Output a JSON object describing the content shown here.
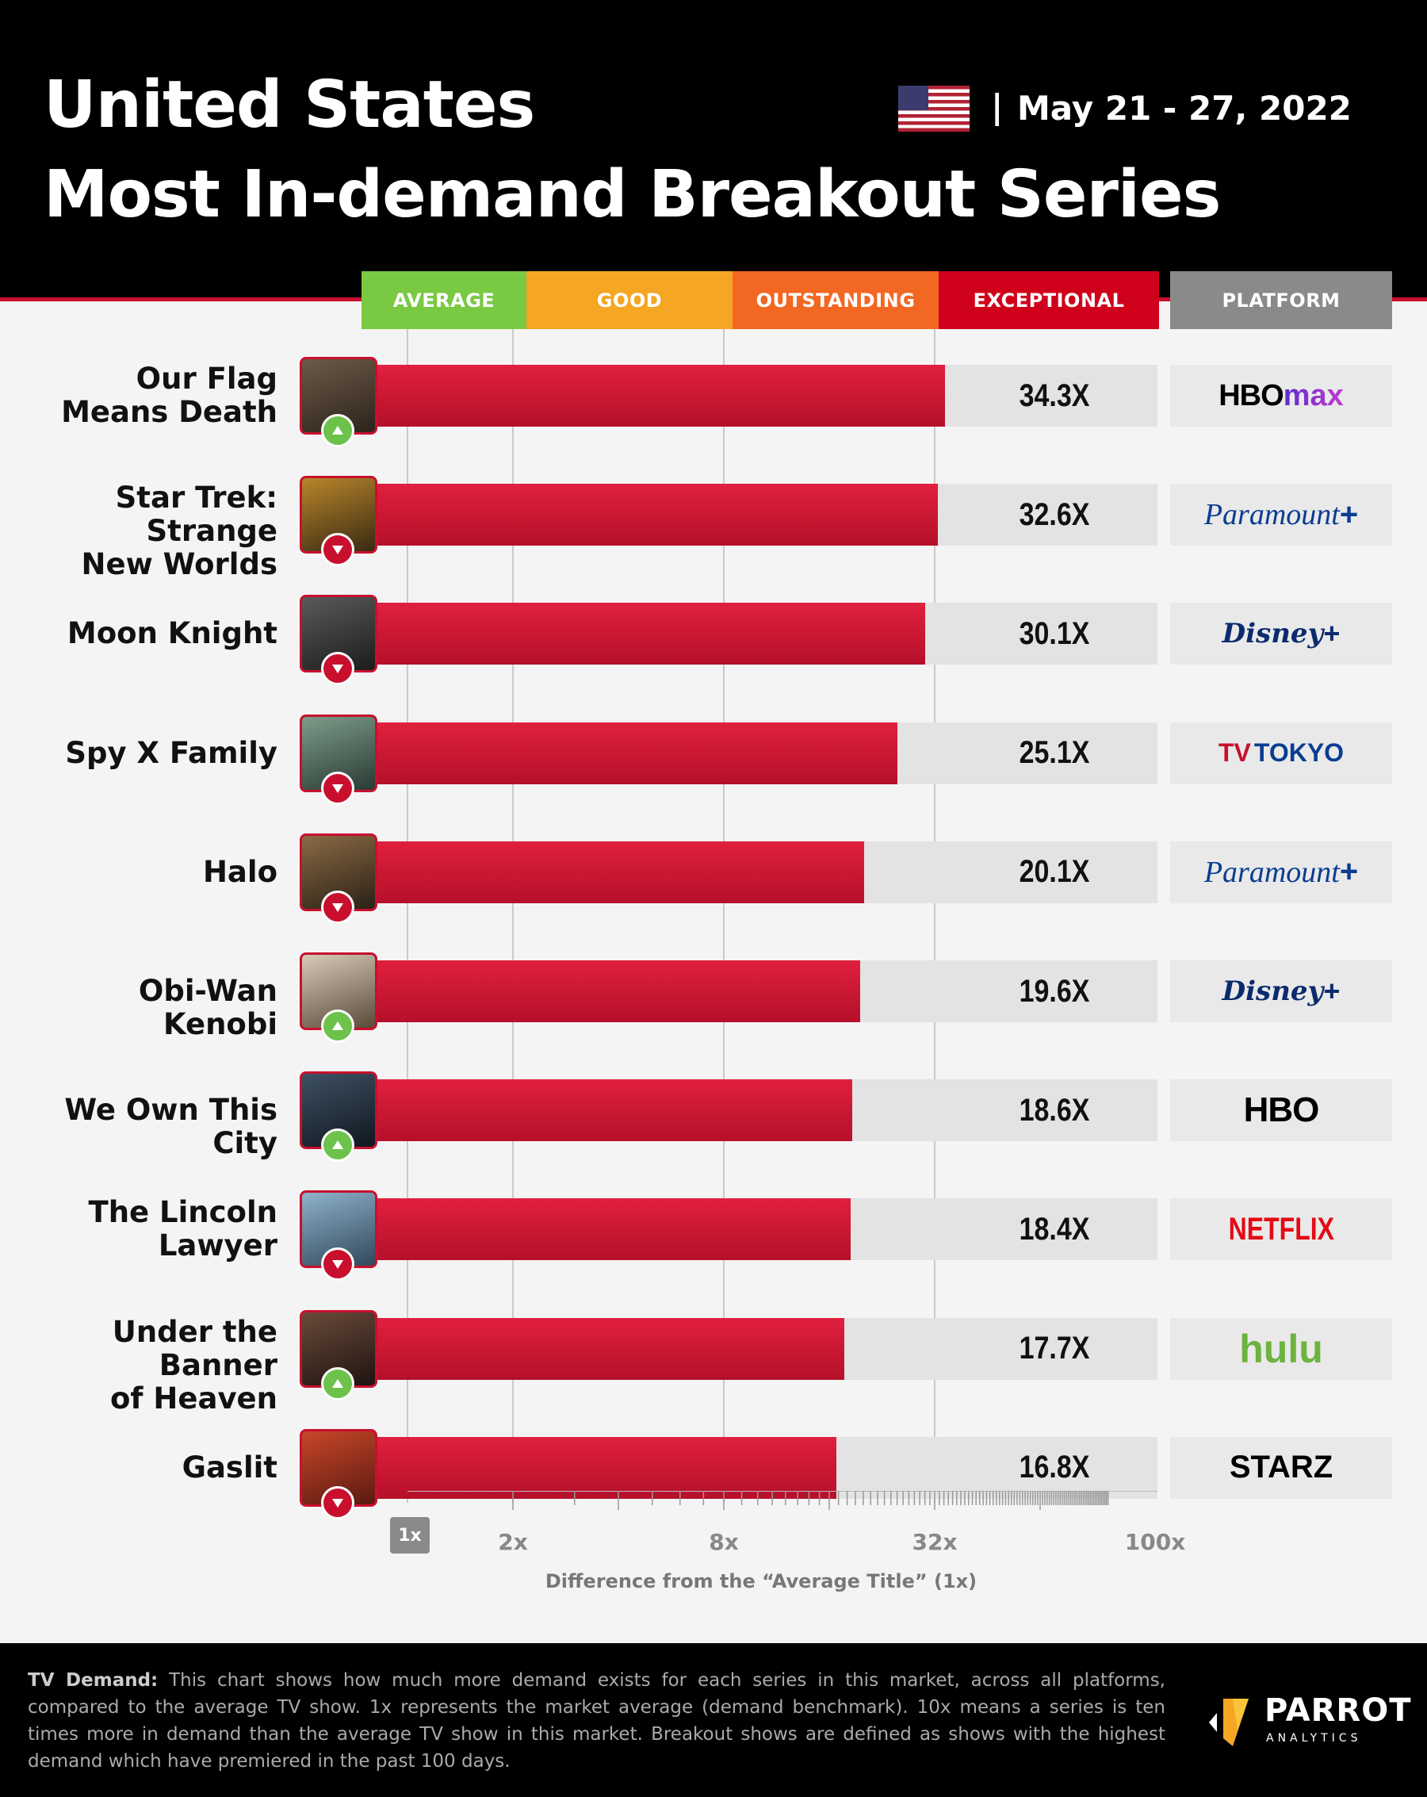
{
  "header": {
    "title_line1": "United States",
    "title_line2": "Most In-demand Breakout Series",
    "separator": "|",
    "date_range": "May 21 - 27, 2022"
  },
  "bands": [
    {
      "label": "AVERAGE",
      "color": "#7ac943"
    },
    {
      "label": "GOOD",
      "color": "#f5a623"
    },
    {
      "label": "OUTSTANDING",
      "color": "#f26722"
    },
    {
      "label": "EXCEPTIONAL",
      "color": "#d0021b"
    }
  ],
  "platform_header": "PLATFORM",
  "chart_data": {
    "type": "bar",
    "orientation": "horizontal",
    "x_scale": "log2",
    "xlim": [
      1,
      100
    ],
    "x_ticks": [
      "1x",
      "2x",
      "8x",
      "32x",
      "100x"
    ],
    "xlabel": "Difference from the “Average Title” (1x)",
    "categories": [
      "Our Flag Means Death",
      "Star Trek: Strange New Worlds",
      "Moon Knight",
      "Spy X Family",
      "Halo",
      "Obi-Wan Kenobi",
      "We Own This City",
      "The Lincoln Lawyer",
      "Under the Banner of Heaven",
      "Gaslit"
    ],
    "values": [
      34.3,
      32.6,
      30.1,
      25.1,
      20.1,
      19.6,
      18.6,
      18.4,
      17.7,
      16.8
    ],
    "value_labels": [
      "34.3X",
      "32.6X",
      "30.1X",
      "25.1X",
      "20.1X",
      "19.6X",
      "18.6X",
      "18.4X",
      "17.7X",
      "16.8X"
    ],
    "rank_change": [
      "up",
      "down",
      "down",
      "down",
      "down",
      "up",
      "up",
      "down",
      "up",
      "down"
    ],
    "platforms": [
      "HBOmax",
      "Paramount+",
      "Disney+",
      "TV TOKYO",
      "Paramount+",
      "Disney+",
      "HBO",
      "NETFLIX",
      "hulu",
      "STARZ"
    ],
    "row_labels": [
      [
        "Our Flag",
        "Means Death"
      ],
      [
        "Star Trek: Strange",
        "New Worlds"
      ],
      [
        "Moon Knight"
      ],
      [
        "Spy X Family"
      ],
      [
        "Halo"
      ],
      [
        "Obi-Wan Kenobi"
      ],
      [
        "We Own This City"
      ],
      [
        "The Lincoln",
        "Lawyer"
      ],
      [
        "Under the Banner",
        "of Heaven"
      ],
      [
        "Gaslit"
      ]
    ],
    "bar_color": "#c8102e"
  },
  "footer": {
    "label": "TV Demand:",
    "text": "This chart shows how much more demand exists for each series in this market, across all platforms, compared to the average TV show. 1x represents the market average (demand benchmark). 10x means a series is ten times more in demand than the average TV show in this market.  Breakout shows are defined as shows with the highest demand which have premiered in the past 100 days.",
    "logo_name": "PARROT",
    "logo_sub": "ANALYTICS"
  },
  "icons": {
    "flag": "us-flag-icon",
    "up": "up-arrow-icon",
    "down": "down-arrow-icon"
  }
}
